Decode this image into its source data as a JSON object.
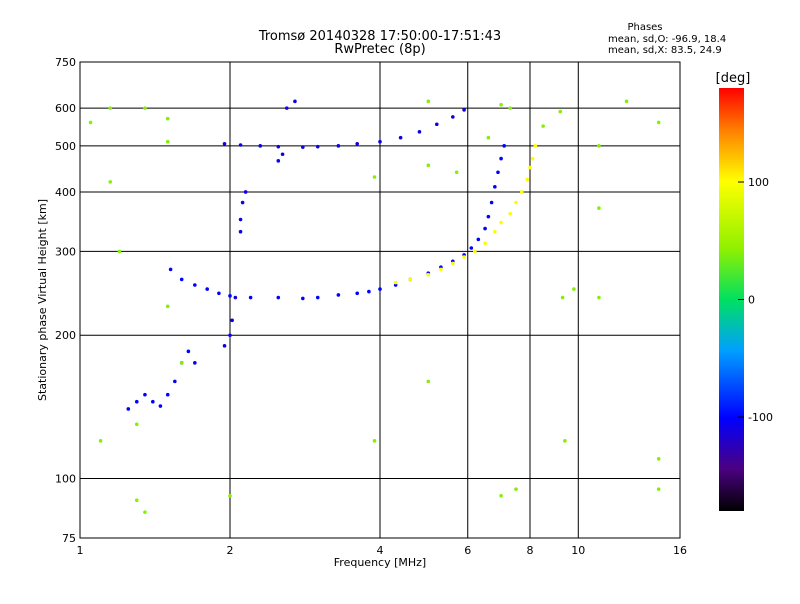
{
  "chart_data": {
    "type": "scatter",
    "title": "Tromsø 20140328 17:50:00-17:51:43",
    "subtitle": "RwPretec (8p)",
    "xlabel": "Frequency [MHz]",
    "ylabel": "Stationary phase Virtual Height [km]",
    "x_scale": "log",
    "y_scale": "log",
    "xlim": [
      1,
      16
    ],
    "ylim": [
      75,
      750
    ],
    "x_ticks": [
      1,
      2,
      4,
      6,
      8,
      10,
      16
    ],
    "x_tick_labels": [
      "1",
      "2",
      "4",
      "6",
      "8",
      "10",
      "16"
    ],
    "y_ticks": [
      75,
      100,
      200,
      300,
      400,
      500,
      600,
      750
    ],
    "y_tick_labels": [
      "75",
      "100",
      "200",
      "300",
      "400",
      "500",
      "600",
      "750"
    ],
    "grid": true,
    "stats": {
      "header": "Phases",
      "line_o": "mean, sd,O: -96.9, 18.4",
      "line_x": "mean, sd,X:  83.5, 24.9"
    },
    "colorbar": {
      "label": "[deg]",
      "range": [
        -180,
        180
      ],
      "ticks": [
        100,
        0,
        -100
      ],
      "tick_labels": [
        "100",
        "0",
        "-100"
      ]
    },
    "series": [
      {
        "trace": "o-mode-F-trace",
        "phase_deg": -100,
        "points": [
          [
            1.52,
            275
          ],
          [
            1.6,
            262
          ],
          [
            1.7,
            255
          ],
          [
            1.8,
            250
          ],
          [
            1.9,
            245
          ],
          [
            2.0,
            242
          ],
          [
            2.2,
            240
          ],
          [
            2.5,
            240
          ],
          [
            2.8,
            239
          ],
          [
            3.0,
            240
          ],
          [
            3.3,
            243
          ],
          [
            3.6,
            245
          ],
          [
            3.8,
            247
          ],
          [
            4.0,
            250
          ],
          [
            4.3,
            255
          ],
          [
            4.6,
            262
          ],
          [
            5.0,
            270
          ],
          [
            5.3,
            278
          ],
          [
            5.6,
            286
          ],
          [
            5.9,
            295
          ],
          [
            6.1,
            305
          ],
          [
            6.3,
            318
          ],
          [
            6.5,
            335
          ],
          [
            6.6,
            355
          ],
          [
            6.7,
            380
          ],
          [
            6.8,
            410
          ],
          [
            6.9,
            440
          ],
          [
            7.0,
            470
          ],
          [
            7.1,
            500
          ]
        ]
      },
      {
        "trace": "x-mode-F-trace",
        "phase_deg": 100,
        "points": [
          [
            4.3,
            258
          ],
          [
            4.6,
            262
          ],
          [
            5.0,
            268
          ],
          [
            5.3,
            275
          ],
          [
            5.6,
            283
          ],
          [
            5.9,
            292
          ],
          [
            6.2,
            300
          ],
          [
            6.5,
            312
          ],
          [
            6.8,
            330
          ],
          [
            7.0,
            345
          ],
          [
            7.3,
            360
          ],
          [
            7.5,
            380
          ],
          [
            7.7,
            400
          ],
          [
            7.9,
            425
          ],
          [
            8.0,
            450
          ],
          [
            8.1,
            470
          ],
          [
            8.2,
            500
          ]
        ]
      },
      {
        "trace": "o-mode-upper-trace",
        "phase_deg": -110,
        "points": [
          [
            1.95,
            505
          ],
          [
            2.1,
            502
          ],
          [
            2.3,
            500
          ],
          [
            2.5,
            498
          ],
          [
            2.8,
            497
          ],
          [
            3.0,
            498
          ],
          [
            3.3,
            500
          ],
          [
            3.6,
            505
          ],
          [
            4.0,
            510
          ],
          [
            4.4,
            520
          ],
          [
            4.8,
            535
          ],
          [
            5.2,
            555
          ],
          [
            5.6,
            575
          ],
          [
            5.9,
            595
          ]
        ]
      },
      {
        "trace": "o-mode-low-trace",
        "phase_deg": -100,
        "points": [
          [
            1.25,
            140
          ],
          [
            1.3,
            145
          ],
          [
            1.35,
            150
          ],
          [
            1.4,
            145
          ],
          [
            1.45,
            142
          ],
          [
            1.5,
            150
          ],
          [
            1.55,
            160
          ],
          [
            1.6,
            175
          ],
          [
            1.65,
            185
          ],
          [
            1.7,
            175
          ]
        ]
      },
      {
        "trace": "o-mode-cusp-2MHz",
        "phase_deg": -110,
        "points": [
          [
            1.95,
            190
          ],
          [
            2.0,
            200
          ],
          [
            2.02,
            215
          ],
          [
            2.05,
            240
          ],
          [
            2.1,
            330
          ],
          [
            2.1,
            350
          ],
          [
            2.12,
            380
          ],
          [
            2.15,
            400
          ],
          [
            2.5,
            465
          ],
          [
            2.55,
            480
          ],
          [
            2.6,
            600
          ],
          [
            2.7,
            620
          ]
        ]
      },
      {
        "trace": "scattered-echoes",
        "phase_deg": 40,
        "points": [
          [
            1.05,
            560
          ],
          [
            1.1,
            120
          ],
          [
            1.15,
            600
          ],
          [
            1.15,
            420
          ],
          [
            1.2,
            300
          ],
          [
            1.3,
            130
          ],
          [
            1.3,
            90
          ],
          [
            1.35,
            600
          ],
          [
            1.35,
            85
          ],
          [
            1.5,
            570
          ],
          [
            1.5,
            510
          ],
          [
            1.5,
            230
          ],
          [
            1.6,
            175
          ],
          [
            2.0,
            92
          ],
          [
            3.9,
            430
          ],
          [
            3.9,
            120
          ],
          [
            5.0,
            620
          ],
          [
            5.0,
            455
          ],
          [
            5.0,
            160
          ],
          [
            5.7,
            440
          ],
          [
            6.6,
            520
          ],
          [
            7.0,
            610
          ],
          [
            7.0,
            92
          ],
          [
            7.3,
            600
          ],
          [
            7.5,
            95
          ],
          [
            8.5,
            550
          ],
          [
            9.2,
            590
          ],
          [
            9.3,
            240
          ],
          [
            9.4,
            120
          ],
          [
            9.8,
            250
          ],
          [
            11.0,
            500
          ],
          [
            11.0,
            370
          ],
          [
            11.0,
            240
          ],
          [
            12.5,
            620
          ],
          [
            14.5,
            560
          ],
          [
            14.5,
            110
          ],
          [
            14.5,
            95
          ]
        ]
      }
    ]
  }
}
